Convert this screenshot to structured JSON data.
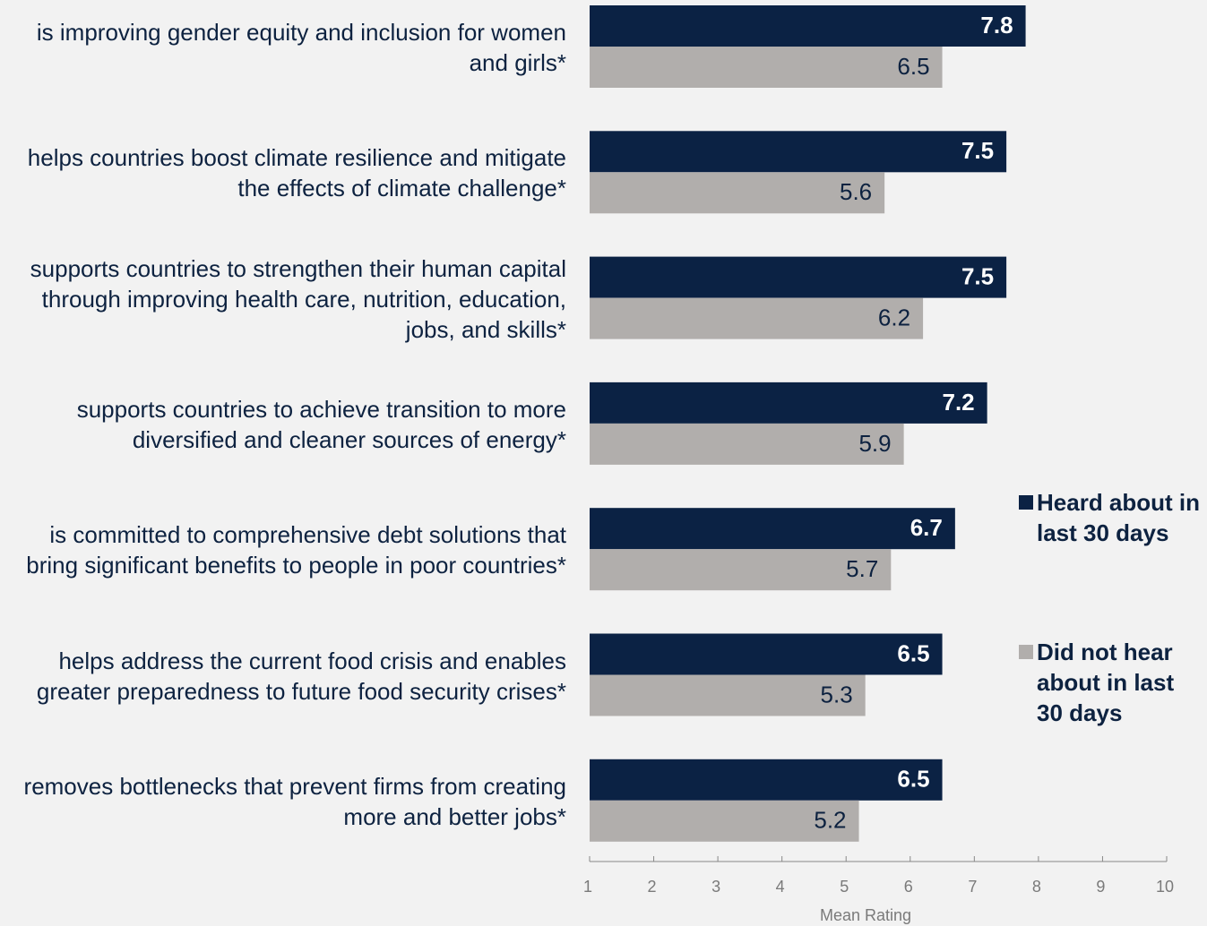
{
  "chart_data": {
    "type": "barh",
    "categories": [
      "is improving gender equity and inclusion for women and girls*",
      "helps countries boost climate resilience and mitigate the effects of climate challenge*",
      "supports countries to strengthen their human capital through improving health care, nutrition, education, jobs, and skills*",
      "supports countries to achieve transition to more diversified and cleaner sources of energy*",
      "is committed to comprehensive debt solutions that bring significant benefits to people in poor countries*",
      "helps address the current food crisis and enables greater preparedness to future food security crises*",
      "removes bottlenecks that prevent firms from creating more and better jobs*"
    ],
    "series": [
      {
        "name": "Heard about in last 30 days",
        "color": "#0b2244",
        "values": [
          7.8,
          7.5,
          7.5,
          7.2,
          6.7,
          6.5,
          6.5
        ]
      },
      {
        "name": "Did not hear about in last 30 days",
        "color": "#b1aeac",
        "values": [
          6.5,
          5.6,
          6.2,
          5.9,
          5.7,
          5.3,
          5.2
        ]
      }
    ],
    "x_label": "Mean Rating",
    "xlim": [
      1,
      10
    ],
    "xticks": [
      1,
      2,
      3,
      4,
      5,
      6,
      7,
      8,
      9,
      10
    ],
    "legend": "right"
  }
}
